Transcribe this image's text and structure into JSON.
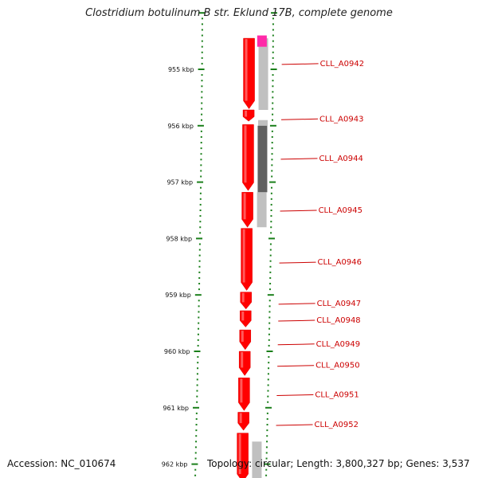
{
  "title": "Clostridium botulinum B str. Eklund 17B, complete genome",
  "accession_text": "Accession: NC_010674",
  "topology_text": "Topology: circular; Length: 3,800,327 bp; Genes: 3,537",
  "colors": {
    "cds": "#ff0000",
    "accent_pink": "#ff2aa8",
    "ruler": "#1a7f1a",
    "label": "#cc0000",
    "backbone": "#808080",
    "track_light": "#c0c0c0",
    "track_dark": "#606060"
  },
  "scale_labels": [
    {
      "kbp": 955,
      "label": "955 kbp"
    },
    {
      "kbp": 956,
      "label": "956 kbp"
    },
    {
      "kbp": 957,
      "label": "957 kbp"
    },
    {
      "kbp": 958,
      "label": "958 kbp"
    },
    {
      "kbp": 959,
      "label": "959 kbp"
    },
    {
      "kbp": 960,
      "label": "960 kbp"
    },
    {
      "kbp": 961,
      "label": "961 kbp"
    },
    {
      "kbp": 962,
      "label": "962 kbp"
    }
  ],
  "genes": [
    {
      "name": "CLL_A0942",
      "start_kbp": 954.45,
      "end_kbp": 955.7
    },
    {
      "name": "CLL_A0943",
      "start_kbp": 955.72,
      "end_kbp": 955.92
    },
    {
      "name": "CLL_A0944",
      "start_kbp": 955.98,
      "end_kbp": 957.15
    },
    {
      "name": "CLL_A0945",
      "start_kbp": 957.18,
      "end_kbp": 957.8
    },
    {
      "name": "CLL_A0946",
      "start_kbp": 957.82,
      "end_kbp": 958.92
    },
    {
      "name": "CLL_A0947",
      "start_kbp": 958.95,
      "end_kbp": 959.25
    },
    {
      "name": "CLL_A0948",
      "start_kbp": 959.28,
      "end_kbp": 959.57
    },
    {
      "name": "CLL_A0949",
      "start_kbp": 959.62,
      "end_kbp": 959.97
    },
    {
      "name": "CLL_A0950",
      "start_kbp": 960.0,
      "end_kbp": 960.43
    },
    {
      "name": "CLL_A0951",
      "start_kbp": 960.47,
      "end_kbp": 961.05
    },
    {
      "name": "CLL_A0952",
      "start_kbp": 961.08,
      "end_kbp": 961.4
    },
    {
      "name": "",
      "start_kbp": 961.45,
      "end_kbp": 962.4
    }
  ],
  "gene_labels_kbp": [
    954.9,
    955.88,
    956.58,
    957.5,
    958.42,
    959.15,
    959.45,
    959.87,
    960.25,
    960.77,
    961.3
  ],
  "tracks": [
    {
      "shade": "light",
      "start_kbp": 954.45,
      "end_kbp": 955.72
    },
    {
      "shade": "light",
      "start_kbp": 955.9,
      "end_kbp": 956.0
    },
    {
      "shade": "dark",
      "start_kbp": 956.0,
      "end_kbp": 957.18
    },
    {
      "shade": "light",
      "start_kbp": 957.18,
      "end_kbp": 957.8
    },
    {
      "shade": "light",
      "start_kbp": 961.6,
      "end_kbp": 962.4
    }
  ],
  "pink_segment": {
    "start_kbp": 954.4,
    "end_kbp": 954.6
  }
}
